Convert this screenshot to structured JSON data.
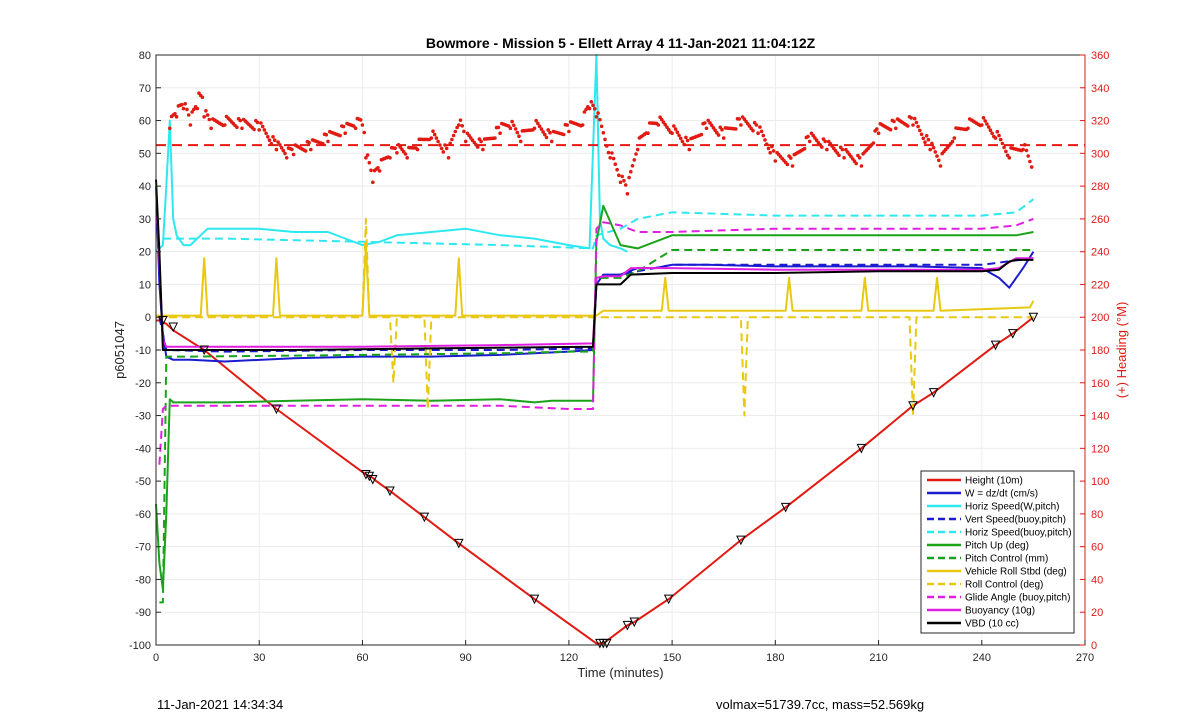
{
  "footer": {
    "left": "11-Jan-2021 14:34:34",
    "right": "volmax=51739.7cc, mass=52.569kg"
  },
  "chart_data": {
    "type": "line",
    "title": "Bowmore - Mission 5 - Ellett Array 4 11-Jan-2021 11:04:12Z",
    "xlabel": "Time (minutes)",
    "ylabel": "p6051047",
    "y2label": "(+) Heading (°M)",
    "xlim": [
      0,
      270
    ],
    "ylim": [
      -100,
      80
    ],
    "y2lim": [
      0,
      360
    ],
    "xticks": [
      0,
      30,
      60,
      90,
      120,
      150,
      180,
      210,
      240,
      270
    ],
    "yticks": [
      80,
      70,
      60,
      50,
      40,
      30,
      20,
      10,
      0,
      -10,
      -20,
      -30,
      -40,
      -50,
      -60,
      -70,
      -80,
      -90,
      -100
    ],
    "y2ticks": [
      360,
      340,
      320,
      300,
      280,
      260,
      240,
      220,
      200,
      180,
      160,
      140,
      120,
      100,
      80,
      60,
      40,
      20,
      0
    ],
    "grid": true,
    "legend_position": "bottom-right",
    "heading_mean": 305,
    "colors": {
      "height": "#e11a12",
      "w": "#1b1bd0",
      "horiz": "#2ee8f0",
      "pitch": "#1aa31a",
      "roll": "#e8c810",
      "glide": "#e020e0",
      "buoy": "#e020e0",
      "vbd": "#000000",
      "heading": "#e11a12"
    },
    "series": [
      {
        "key": "height",
        "name": "Height (10m)",
        "style": "solid",
        "x": [
          0,
          1,
          2,
          3,
          5,
          14,
          35,
          61,
          63,
          64,
          68,
          78,
          88,
          110,
          128,
          129,
          130,
          137,
          139,
          149,
          170,
          183,
          205,
          220,
          226,
          244,
          249,
          255
        ],
        "y": [
          -1,
          -1,
          -1.5,
          -2,
          -4,
          -10,
          -28,
          -48,
          -49,
          -50,
          -53,
          -61,
          -69,
          -86,
          -99.5,
          -99.5,
          -99.5,
          -94,
          -93,
          -86,
          -68,
          -58,
          -40,
          -27,
          -23,
          -8.5,
          -5,
          0
        ]
      },
      {
        "key": "w",
        "name": "W = dz/dt (cm/s)",
        "style": "solid",
        "x": [
          0,
          1,
          2,
          3,
          5,
          10,
          20,
          40,
          60,
          80,
          100,
          110,
          120,
          127,
          128,
          130,
          135,
          140,
          145,
          150,
          160,
          180,
          200,
          220,
          240,
          245,
          248,
          252,
          255
        ],
        "y": [
          40,
          10,
          -5,
          -12,
          -13,
          -13,
          -13.5,
          -12.5,
          -12,
          -12,
          -11.5,
          -11,
          -10.5,
          -10,
          10,
          13,
          13,
          15,
          15,
          16,
          16,
          15.5,
          15.5,
          15.5,
          15,
          12,
          9,
          15,
          20
        ]
      },
      {
        "key": "horiz",
        "name": "Horiz Speed(W,pitch)",
        "style": "solid",
        "x": [
          0,
          2,
          3,
          4,
          5,
          6,
          8,
          10,
          15,
          20,
          30,
          40,
          50,
          60,
          65,
          70,
          80,
          90,
          100,
          110,
          120,
          126,
          128,
          129,
          130,
          132,
          135,
          137
        ],
        "y": [
          20,
          22,
          40,
          60,
          30,
          25,
          22,
          22,
          27,
          27,
          27,
          26,
          26,
          22,
          23,
          25,
          26,
          27,
          25,
          24,
          22,
          21,
          80,
          30,
          24,
          22,
          21,
          20
        ]
      },
      {
        "key": "vert",
        "name": "Vert Speed(buoy,pitch)",
        "style": "dashed",
        "color": "#1b1bd0",
        "x": [
          1,
          3,
          20,
          60,
          100,
          127,
          128,
          135,
          140,
          150,
          180,
          200,
          240,
          255
        ],
        "y": [
          0,
          -10,
          -10.5,
          -10,
          -10,
          -9.5,
          12,
          13,
          14,
          16,
          16,
          16,
          16,
          18
        ]
      },
      {
        "key": "horiz2",
        "name": "Horiz Speed(buoy,pitch)",
        "style": "dashed",
        "color": "#2ee8f0",
        "x": [
          2,
          5,
          20,
          60,
          100,
          127,
          128,
          135,
          140,
          150,
          180,
          200,
          240,
          250,
          255
        ],
        "y": [
          24,
          24,
          24,
          23,
          22,
          21,
          25,
          27,
          30,
          32,
          31,
          31,
          31,
          32,
          36
        ]
      },
      {
        "key": "pitch",
        "name": "Pitch Up (deg)",
        "style": "solid",
        "x": [
          0,
          1,
          2,
          3,
          4,
          5,
          10,
          20,
          40,
          60,
          80,
          100,
          110,
          115,
          120,
          127,
          128,
          130,
          135,
          140,
          150,
          180,
          200,
          240,
          250,
          255
        ],
        "y": [
          -57,
          -75,
          -83,
          -60,
          -25,
          -26,
          -26,
          -26,
          -25.5,
          -25,
          -25.5,
          -25,
          -26,
          -25.5,
          -25.5,
          -25.5,
          23,
          34,
          22,
          21,
          25,
          25,
          25,
          25,
          25,
          26
        ]
      },
      {
        "key": "pitchctl",
        "name": "Pitch Control (mm)",
        "style": "dashed",
        "color": "#1aa31a",
        "x": [
          1,
          2,
          3,
          10,
          60,
          100,
          120,
          127,
          128,
          135,
          140,
          150,
          180,
          200,
          240,
          255
        ],
        "y": [
          -87,
          -87,
          -12,
          -12,
          -11.5,
          -11,
          -10.5,
          -10.5,
          12,
          12,
          14,
          20.5,
          20.5,
          20.5,
          20.5,
          20.5
        ]
      },
      {
        "key": "roll",
        "name": "Vehicle Roll Stbd (deg)",
        "style": "solid",
        "x": [
          0,
          13,
          14,
          15,
          34,
          35,
          36,
          60,
          61,
          62,
          87,
          88,
          89,
          127,
          128,
          130,
          147,
          148,
          149,
          183,
          184,
          185,
          205,
          206,
          207,
          226,
          227,
          228,
          254,
          255
        ],
        "y": [
          0.5,
          0.5,
          18,
          0.5,
          0.5,
          18,
          0.5,
          0.5,
          22,
          0.5,
          0.5,
          18,
          0.5,
          0.5,
          0.5,
          2,
          2,
          12,
          2,
          2,
          12,
          2,
          2,
          12,
          2,
          2,
          12,
          2,
          3,
          5
        ]
      },
      {
        "key": "rollctl",
        "name": "Roll Control (deg)",
        "style": "dashed",
        "color": "#e8c810",
        "x": [
          0,
          60,
          61,
          62,
          68,
          69,
          70,
          78,
          79,
          80,
          127,
          128,
          135,
          170,
          171,
          172,
          219,
          220,
          221,
          255
        ],
        "y": [
          0,
          0,
          30,
          0,
          0,
          -20,
          0,
          0,
          -28,
          0,
          0,
          0,
          0,
          0,
          -30,
          0,
          0,
          -30,
          0,
          0
        ]
      },
      {
        "key": "glide",
        "name": "Glide Angle (buoy,pitch)",
        "style": "dashed",
        "color": "#e020e0",
        "x": [
          1,
          2,
          3,
          20,
          60,
          100,
          120,
          127,
          128,
          130,
          135,
          140,
          150,
          180,
          200,
          240,
          250,
          255
        ],
        "y": [
          -45,
          -28,
          -27,
          -27,
          -27,
          -27,
          -28,
          -28,
          27,
          29,
          28,
          26,
          26,
          27,
          27,
          27,
          28,
          30
        ]
      },
      {
        "key": "buoy",
        "name": "Buoyancy (10g)",
        "style": "solid",
        "x": [
          0,
          2,
          3,
          30,
          60,
          100,
          127,
          128,
          130,
          135,
          138,
          150,
          180,
          210,
          240,
          245,
          250,
          255
        ],
        "y": [
          40,
          -7,
          -9,
          -9,
          -9,
          -8.5,
          -8,
          12,
          12.5,
          12.5,
          15,
          15,
          14.5,
          14.5,
          14.5,
          15,
          18,
          18
        ]
      },
      {
        "key": "vbd",
        "name": "VBD (10 cc)",
        "style": "solid",
        "x": [
          0,
          1,
          2,
          3,
          40,
          80,
          127,
          128,
          130,
          135,
          138,
          150,
          180,
          210,
          240,
          245,
          248,
          250,
          255
        ],
        "y": [
          42,
          20,
          -10,
          -10,
          -10,
          -9.5,
          -9,
          10,
          10,
          10,
          13,
          13.5,
          13.5,
          14,
          14,
          14.5,
          17,
          17.5,
          17.5
        ]
      }
    ],
    "markers": {
      "x": [
        2,
        5,
        14,
        35,
        61,
        62,
        63,
        68,
        78,
        88,
        110,
        129,
        130,
        131,
        137,
        139,
        149,
        170,
        183,
        205,
        220,
        226,
        244,
        249,
        255
      ],
      "y": [
        -1,
        -3,
        -10,
        -28,
        -48,
        -48.5,
        -49.5,
        -53,
        -61,
        -69,
        -86,
        -99.5,
        -99.5,
        -99.5,
        -94,
        -93,
        -86,
        -68,
        -58,
        -40,
        -27,
        -23,
        -8.5,
        -5,
        0
      ]
    },
    "heading": {
      "name": "(+) Heading (°M)",
      "x": [
        4,
        6,
        8,
        10,
        12,
        13,
        14,
        16,
        20,
        25,
        30,
        35,
        38,
        40,
        45,
        50,
        55,
        58,
        60,
        61,
        63,
        65,
        68,
        70,
        73,
        76,
        80,
        85,
        88,
        90,
        95,
        100,
        103,
        106,
        110,
        115,
        120,
        124,
        126,
        128,
        132,
        135,
        137,
        140,
        143,
        146,
        150,
        155,
        160,
        165,
        170,
        175,
        180,
        185,
        190,
        195,
        200,
        205,
        210,
        215,
        220,
        225,
        228,
        232,
        236,
        240,
        244,
        248,
        252,
        255
      ],
      "y": [
        318,
        325,
        330,
        320,
        330,
        338,
        325,
        318,
        320,
        318,
        317,
        305,
        300,
        302,
        305,
        310,
        315,
        318,
        320,
        300,
        285,
        292,
        300,
        303,
        300,
        305,
        312,
        300,
        320,
        310,
        305,
        315,
        318,
        310,
        318,
        310,
        316,
        320,
        330,
        325,
        300,
        285,
        278,
        305,
        315,
        320,
        315,
        305,
        318,
        312,
        320,
        315,
        298,
        295,
        310,
        305,
        300,
        295,
        315,
        318,
        320,
        305,
        295,
        312,
        318,
        320,
        312,
        300,
        305,
        290
      ]
    },
    "legend": [
      "Height (10m)",
      "W = dz/dt (cm/s)",
      "Horiz Speed(W,pitch)",
      "Vert Speed(buoy,pitch)",
      "Horiz Speed(buoy,pitch)",
      "Pitch Up (deg)",
      "Pitch Control (mm)",
      "Vehicle Roll Stbd (deg)",
      "Roll Control (deg)",
      "Glide Angle (buoy,pitch)",
      "Buoyancy (10g)",
      "VBD (10 cc)"
    ]
  }
}
